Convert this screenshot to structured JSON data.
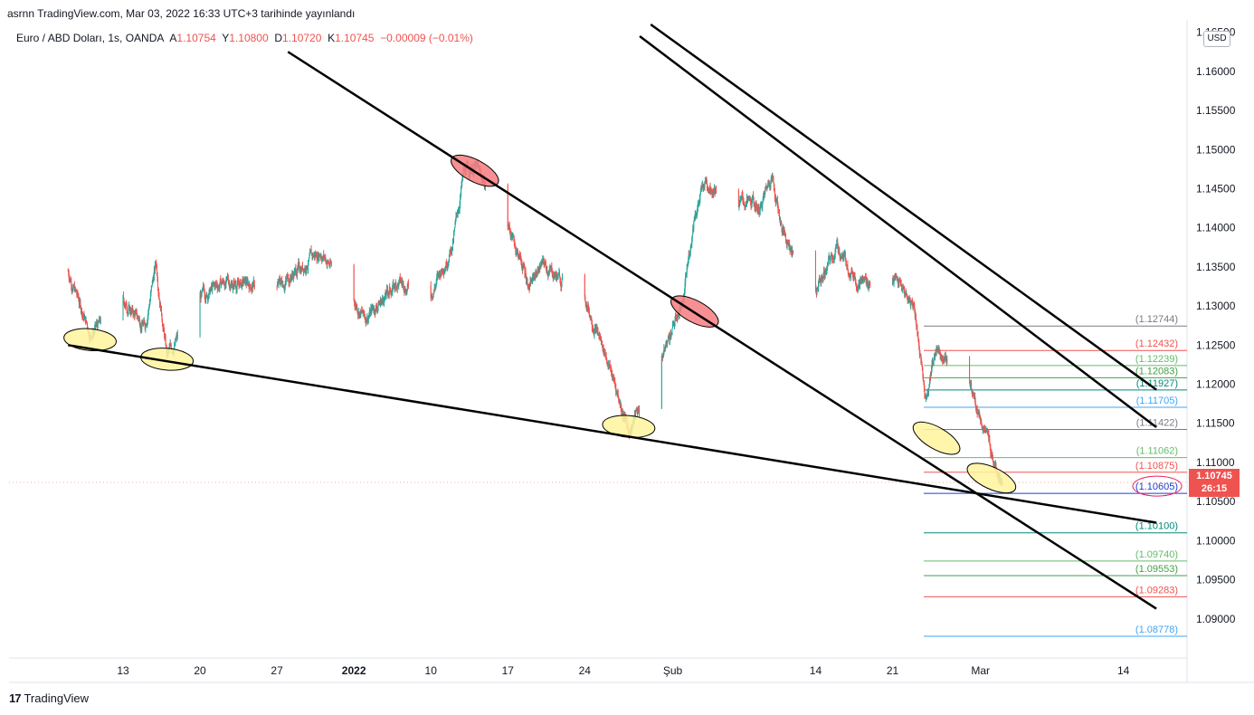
{
  "header": {
    "publish_line": "asrnn TradingView.com, Mar 03, 2022 16:33 UTC+3 tarihinde yayınlandı"
  },
  "legend": {
    "symbol": "Euro / ABD Doları, 1s, OANDA",
    "open_label": "A",
    "open": "1.10754",
    "high_label": "Y",
    "high": "1.10800",
    "low_label": "D",
    "low": "1.10720",
    "close_label": "K",
    "close": "1.10745",
    "change": "−0.00009 (−0.01%)"
  },
  "currency": "USD",
  "last_price": {
    "price": "1.10745",
    "countdown": "26:15",
    "color": "#ef5350"
  },
  "footer": {
    "brand": "TradingView",
    "logo_mark": "17"
  },
  "colors": {
    "up": "#26a69a",
    "down": "#ef5350",
    "trendline": "#000000",
    "ellipse_red": "#f77c80",
    "ellipse_yellow": "#fff59d"
  },
  "chart_data": {
    "type": "candlestick",
    "symbol": "EURUSD",
    "timeframe": "1h",
    "ylim": [
      1.085,
      1.166
    ],
    "y_ticks": [
      "1.16500",
      "1.16000",
      "1.15500",
      "1.15000",
      "1.14500",
      "1.14000",
      "1.13500",
      "1.13000",
      "1.12500",
      "1.12000",
      "1.11500",
      "1.11000",
      "1.10500",
      "1.10000",
      "1.09500",
      "1.09000"
    ],
    "x_ticks": [
      "13",
      "20",
      "27",
      "2022",
      "10",
      "17",
      "24",
      "Şub",
      "14",
      "21",
      "Mar",
      "14"
    ],
    "price_path": [
      {
        "t": "2021-12-08",
        "p": 1.1345
      },
      {
        "t": "2021-12-10",
        "p": 1.1265
      },
      {
        "t": "2021-12-13",
        "p": 1.1305
      },
      {
        "t": "2021-12-15",
        "p": 1.1275
      },
      {
        "t": "2021-12-16",
        "p": 1.1355
      },
      {
        "t": "2021-12-17",
        "p": 1.1235
      },
      {
        "t": "2021-12-20",
        "p": 1.131
      },
      {
        "t": "2021-12-22",
        "p": 1.133
      },
      {
        "t": "2021-12-27",
        "p": 1.1325
      },
      {
        "t": "2021-12-31",
        "p": 1.137
      },
      {
        "t": "2022-01-04",
        "p": 1.1285
      },
      {
        "t": "2022-01-07",
        "p": 1.133
      },
      {
        "t": "2022-01-10",
        "p": 1.1315
      },
      {
        "t": "2022-01-12",
        "p": 1.138
      },
      {
        "t": "2022-01-13",
        "p": 1.147
      },
      {
        "t": "2022-01-14",
        "p": 1.148
      },
      {
        "t": "2022-01-17",
        "p": 1.1405
      },
      {
        "t": "2022-01-19",
        "p": 1.1325
      },
      {
        "t": "2022-01-20",
        "p": 1.1355
      },
      {
        "t": "2022-01-24",
        "p": 1.131
      },
      {
        "t": "2022-01-26",
        "p": 1.1235
      },
      {
        "t": "2022-01-28",
        "p": 1.114
      },
      {
        "t": "2022-01-31",
        "p": 1.1235
      },
      {
        "t": "2022-02-02",
        "p": 1.131
      },
      {
        "t": "2022-02-03",
        "p": 1.142
      },
      {
        "t": "2022-02-04",
        "p": 1.146
      },
      {
        "t": "2022-02-07",
        "p": 1.1435
      },
      {
        "t": "2022-02-09",
        "p": 1.1425
      },
      {
        "t": "2022-02-10",
        "p": 1.147
      },
      {
        "t": "2022-02-11",
        "p": 1.1395
      },
      {
        "t": "2022-02-14",
        "p": 1.132
      },
      {
        "t": "2022-02-16",
        "p": 1.1375
      },
      {
        "t": "2022-02-18",
        "p": 1.133
      },
      {
        "t": "2022-02-21",
        "p": 1.134
      },
      {
        "t": "2022-02-23",
        "p": 1.13
      },
      {
        "t": "2022-02-24",
        "p": 1.118
      },
      {
        "t": "2022-02-25",
        "p": 1.125
      },
      {
        "t": "2022-02-28",
        "p": 1.12
      },
      {
        "t": "2022-03-02",
        "p": 1.1115
      },
      {
        "t": "2022-03-03",
        "p": 1.10745
      }
    ],
    "horizontal_levels": [
      {
        "label": "(1.12744)",
        "value": 1.12744,
        "color": "#787b86"
      },
      {
        "label": "(1.12432)",
        "value": 1.12432,
        "color": "#ef5350"
      },
      {
        "label": "(1.12239)",
        "value": 1.12239,
        "color": "#66bb6a"
      },
      {
        "label": "(1.12083)",
        "value": 1.12083,
        "color": "#43a047"
      },
      {
        "label": "(1.11927)",
        "value": 1.11927,
        "color": "#00897b"
      },
      {
        "label": "(1.11705)",
        "value": 1.11705,
        "color": "#42a5f5"
      },
      {
        "label": "(1.11422)",
        "value": 1.11422,
        "color": "#787b86"
      },
      {
        "label": "(1.11062)",
        "value": 1.11062,
        "color": "#66bb6a"
      },
      {
        "label": "(1.10875)",
        "value": 1.10875,
        "color": "#ef5350"
      },
      {
        "label": "(1.10605)",
        "value": 1.10605,
        "color": "#1e3fd0"
      },
      {
        "label": "(1.10100)",
        "value": 1.101,
        "color": "#00897b"
      },
      {
        "label": "(1.09740)",
        "value": 1.0974,
        "color": "#66bb6a"
      },
      {
        "label": "(1.09553)",
        "value": 1.09553,
        "color": "#43a047"
      },
      {
        "label": "(1.09283)",
        "value": 1.09283,
        "color": "#ef5350"
      },
      {
        "label": "(1.08778)",
        "value": 1.08778,
        "color": "#42a5f5"
      }
    ],
    "trendlines": [
      {
        "name": "support-lower",
        "from": {
          "t": "2021-12-08",
          "p": 1.125
        },
        "to": {
          "t": "2022-03-17",
          "p": 1.1023
        }
      },
      {
        "name": "channel-mid",
        "from": {
          "t": "2021-12-28",
          "p": 1.1625
        },
        "to": {
          "t": "2022-03-17",
          "p": 1.0913
        }
      },
      {
        "name": "channel-upper-inner",
        "from": {
          "t": "2022-01-29",
          "p": 1.1645
        },
        "to": {
          "t": "2022-03-17",
          "p": 1.1145
        }
      },
      {
        "name": "channel-upper-outer",
        "from": {
          "t": "2022-01-30",
          "p": 1.166
        },
        "to": {
          "t": "2022-03-17",
          "p": 1.1193
        }
      }
    ],
    "touch_markers": [
      {
        "color": "yellow",
        "t": "2021-12-10",
        "p": 1.1257
      },
      {
        "color": "yellow",
        "t": "2021-12-17",
        "p": 1.1232
      },
      {
        "color": "red",
        "t": "2022-01-14",
        "p": 1.1473
      },
      {
        "color": "yellow",
        "t": "2022-01-28",
        "p": 1.1146
      },
      {
        "color": "red",
        "t": "2022-02-03",
        "p": 1.1293
      },
      {
        "color": "yellow",
        "t": "2022-02-25",
        "p": 1.1131
      },
      {
        "color": "yellow",
        "t": "2022-03-02",
        "p": 1.108
      }
    ],
    "last": {
      "t": "2022-03-03",
      "p": 1.10745
    }
  }
}
